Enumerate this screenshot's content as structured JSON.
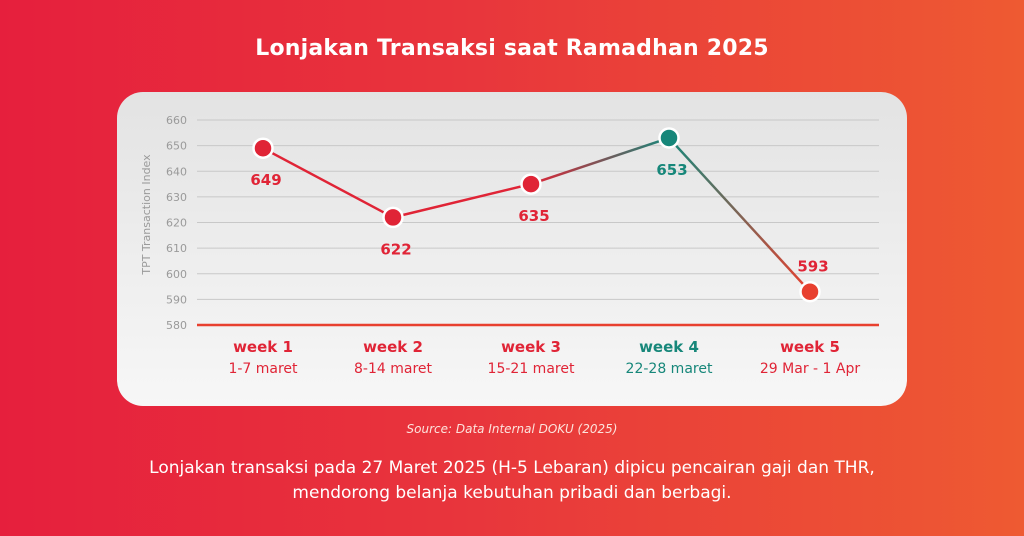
{
  "title": "Lonjakan Transaksi saat Ramadhan 2025",
  "source": "Source: Data Internal DOKU (2025)",
  "caption": {
    "line1": "Lonjakan transaksi pada 27 Maret 2025 (H-5 Lebaran) dipicu pencairan gaji dan THR,",
    "line2": "mendorong belanja kebutuhan pribadi dan berbagi."
  },
  "colors": {
    "red": "#e02436",
    "teal": "#17877a",
    "orange_red": "#e8402f",
    "grid": "#c8c8c8",
    "tick": "#9a9a9a"
  },
  "chart_data": {
    "type": "line",
    "title": "Lonjakan Transaksi saat Ramadhan 2025",
    "ylabel": "TPT Transaction Index",
    "ylim": [
      580,
      660
    ],
    "yticks": [
      580,
      590,
      600,
      610,
      620,
      630,
      640,
      650,
      660
    ],
    "grid": true,
    "categories": [
      "week 1",
      "week 2",
      "week 3",
      "week 4",
      "week 5"
    ],
    "category_dates": [
      "1-7 maret",
      "8-14 maret",
      "15-21 maret",
      "22-28 maret",
      "29 Mar - 1 Apr"
    ],
    "values": [
      649,
      622,
      635,
      653,
      593
    ],
    "value_labels": [
      "649",
      "622",
      "635",
      "653",
      "593"
    ],
    "highlight_index": 3
  }
}
